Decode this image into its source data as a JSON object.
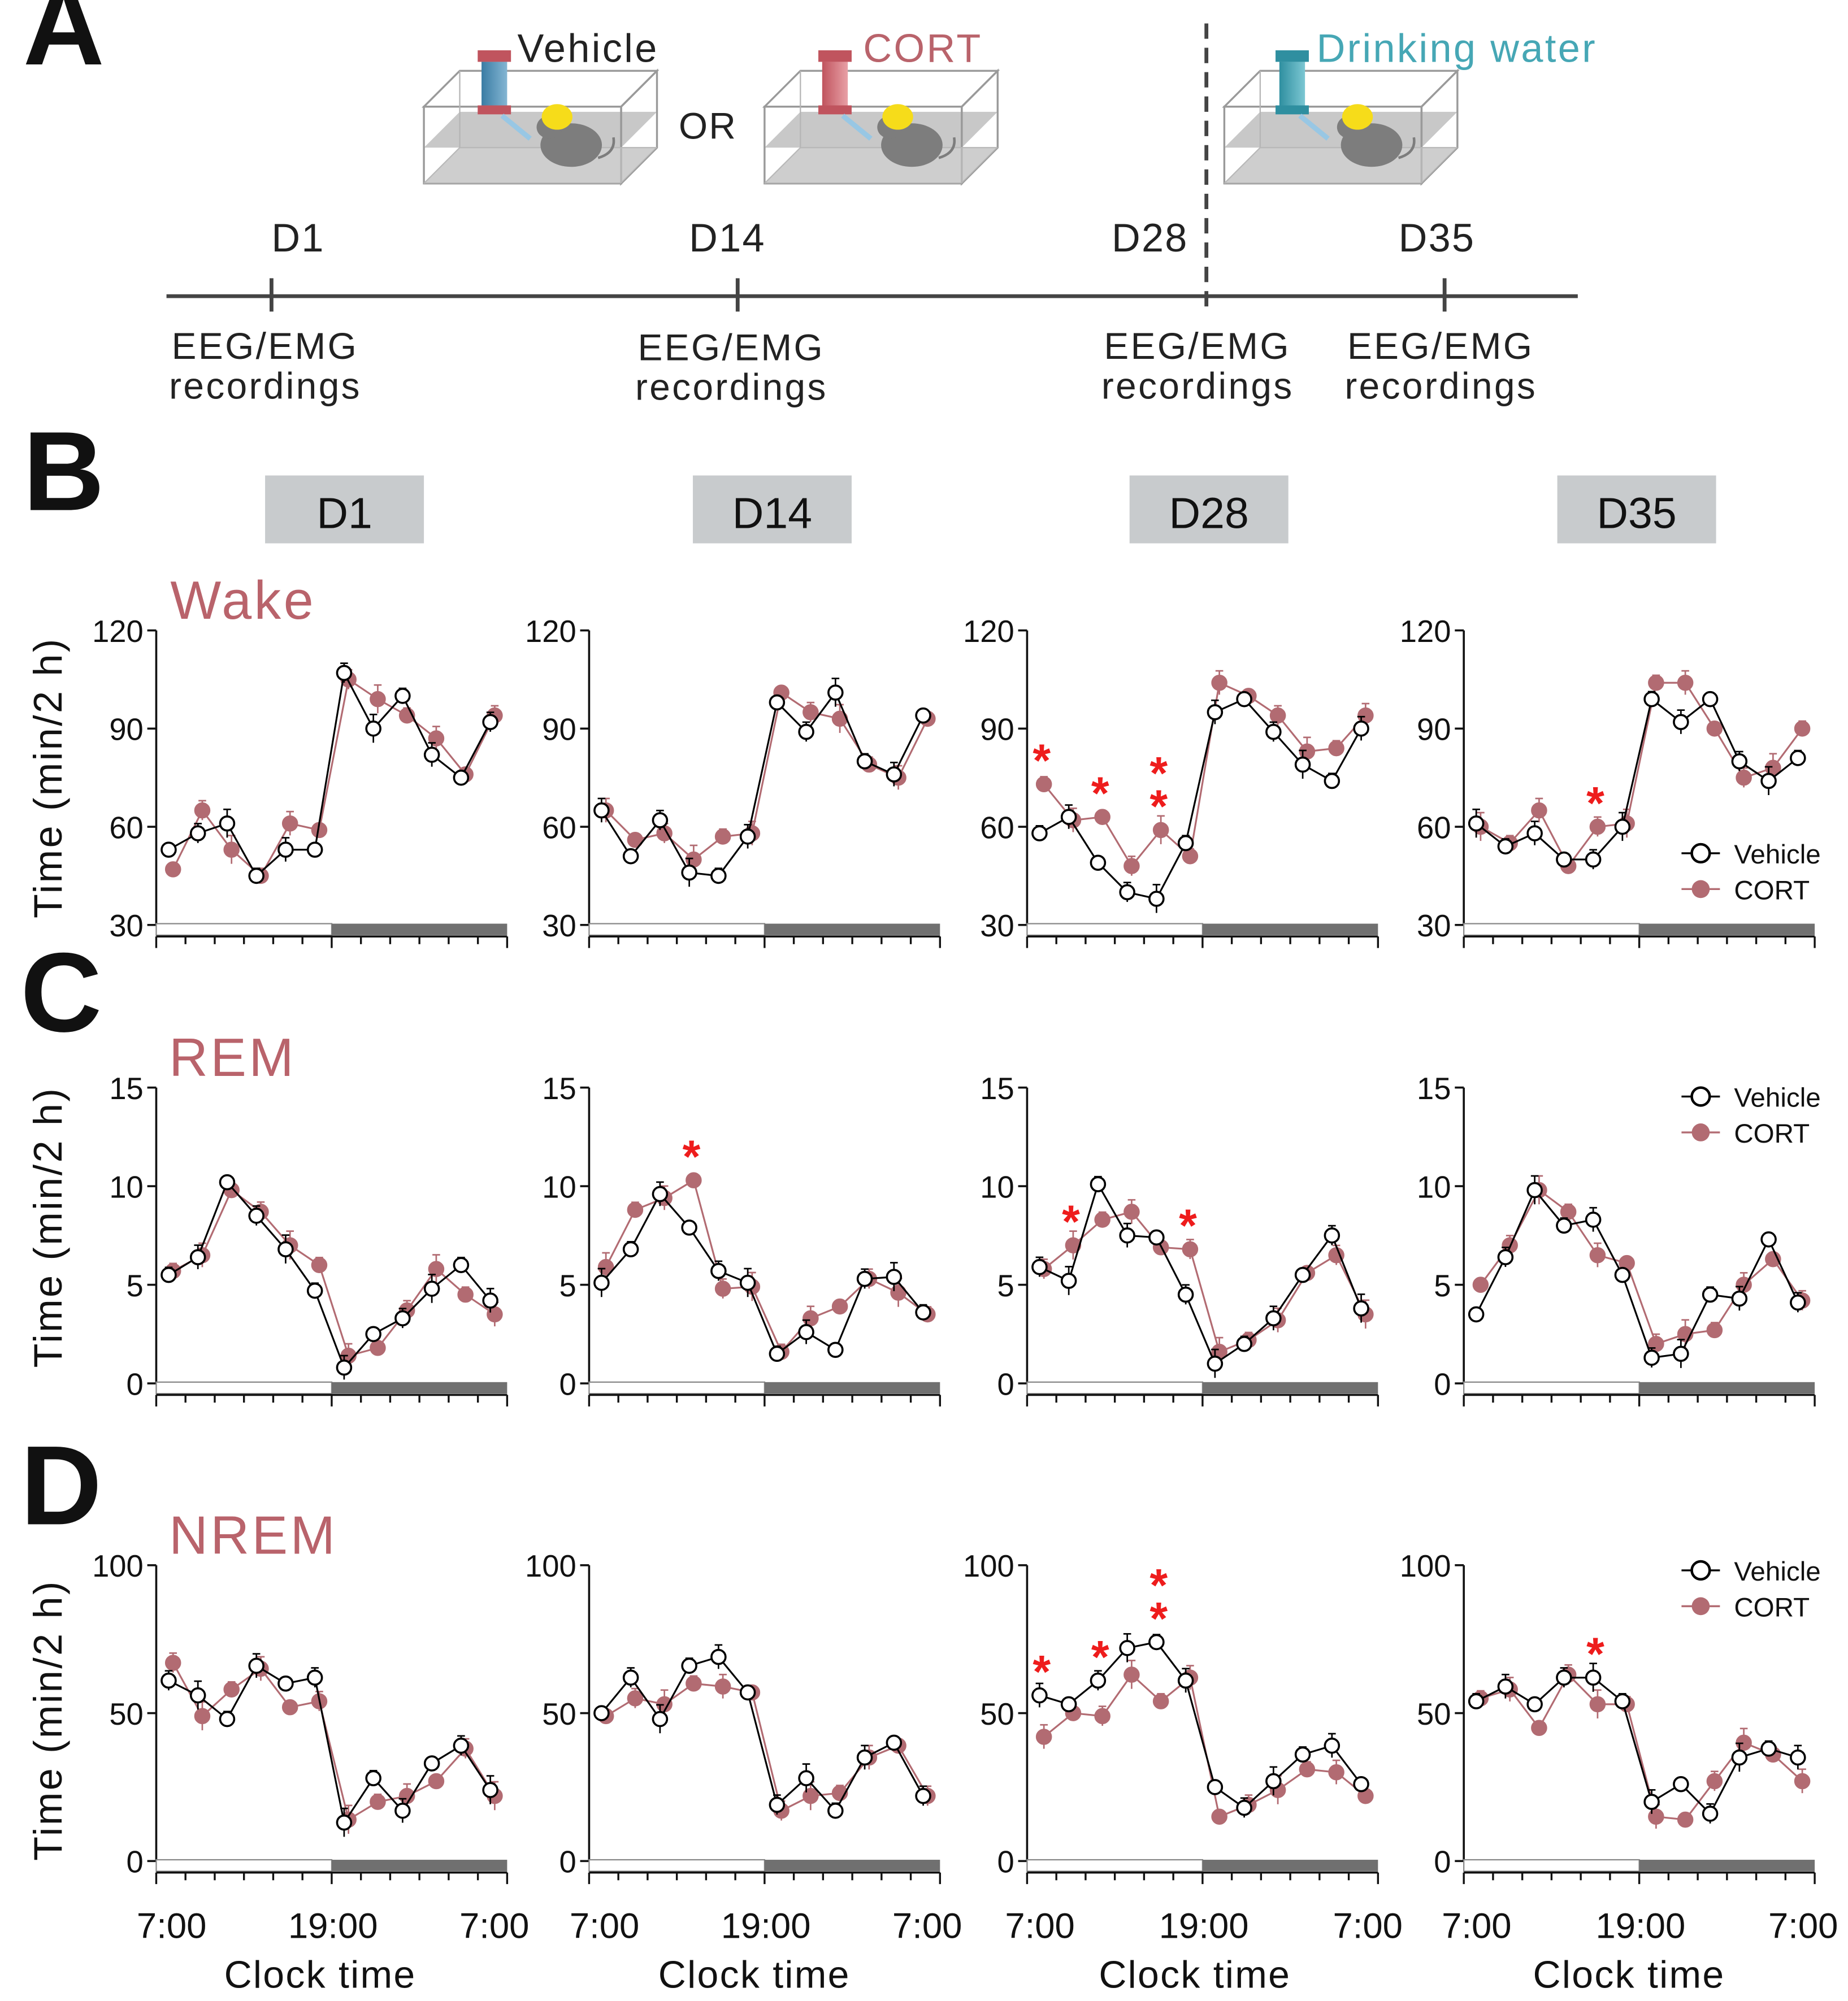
{
  "panel_labels": {
    "a": "A",
    "b": "B",
    "c": "C",
    "d": "D"
  },
  "timeline": {
    "options": [
      "Vehicle",
      "OR",
      "CORT",
      "Drinking water"
    ],
    "days": [
      "D1",
      "D14",
      "D28",
      "D35"
    ],
    "rec_line1": "EEG/EMG",
    "rec_line2": "recordings"
  },
  "colors": {
    "vehicle": "#000000",
    "cort": "#b26b72",
    "state": "#b9636b",
    "water": "#46a7b5",
    "accent": "#ee1c1c",
    "dark_bar": "#707070"
  },
  "icons": [
    "mouse-cage-icon",
    "bottle-icon"
  ],
  "day_headers": [
    "D1",
    "D14",
    "D28",
    "D35"
  ],
  "x_axis_label": "Clock time",
  "y_axis_label": "Time (min/2 h)",
  "x_tick_labels": [
    "7:00",
    "19:00",
    "7:00"
  ],
  "legend": {
    "vehicle": "Vehicle",
    "cort": "CORT"
  },
  "chart_data": [
    {
      "type": "line",
      "title": "Wake",
      "ylabel": "Time (min/2 h)",
      "ylim": [
        30,
        120
      ],
      "yticks": [
        30,
        60,
        90,
        120
      ],
      "x": [
        8,
        10,
        12,
        14,
        16,
        18,
        20,
        22,
        24,
        26,
        28,
        30
      ],
      "panels": [
        {
          "day": "D1",
          "series": [
            {
              "name": "Vehicle",
              "values": [
                53,
                58,
                61,
                45,
                53,
                53,
                107,
                90,
                100,
                82,
                75,
                92
              ]
            },
            {
              "name": "CORT",
              "values": [
                47,
                65,
                53,
                45,
                61,
                59,
                105,
                99,
                94,
                87,
                76,
                94
              ]
            }
          ],
          "stars": []
        },
        {
          "day": "D14",
          "series": [
            {
              "name": "Vehicle",
              "values": [
                65,
                51,
                62,
                46,
                45,
                57,
                98,
                89,
                101,
                80,
                76,
                94
              ]
            },
            {
              "name": "CORT",
              "values": [
                65,
                56,
                58,
                50,
                57,
                58,
                101,
                95,
                93,
                79,
                75,
                93
              ]
            }
          ],
          "stars": []
        },
        {
          "day": "D28",
          "series": [
            {
              "name": "Vehicle",
              "values": [
                58,
                63,
                49,
                40,
                38,
                55,
                95,
                99,
                89,
                79,
                74,
                90
              ]
            },
            {
              "name": "CORT",
              "values": [
                73,
                62,
                63,
                48,
                59,
                51,
                104,
                100,
                94,
                83,
                84,
                94
              ]
            }
          ],
          "stars": [
            {
              "x": 8,
              "text": "*"
            },
            {
              "x": 12,
              "text": "*"
            },
            {
              "x": 16,
              "text": "**"
            }
          ]
        },
        {
          "day": "D35",
          "series": [
            {
              "name": "Vehicle",
              "values": [
                61,
                54,
                58,
                50,
                50,
                60,
                99,
                92,
                99,
                80,
                74,
                81
              ]
            },
            {
              "name": "CORT",
              "values": [
                60,
                55,
                65,
                48,
                60,
                61,
                104,
                104,
                90,
                75,
                78,
                90
              ]
            }
          ],
          "stars": [
            {
              "x": 16,
              "text": "*"
            }
          ]
        }
      ]
    },
    {
      "type": "line",
      "title": "REM",
      "ylabel": "Time (min/2 h)",
      "ylim": [
        0,
        15
      ],
      "yticks": [
        0,
        5,
        10,
        15
      ],
      "x": [
        8,
        10,
        12,
        14,
        16,
        18,
        20,
        22,
        24,
        26,
        28,
        30
      ],
      "panels": [
        {
          "day": "D1",
          "series": [
            {
              "name": "Vehicle",
              "values": [
                5.5,
                6.4,
                10.2,
                8.5,
                6.8,
                4.7,
                0.8,
                2.5,
                3.3,
                4.8,
                6.0,
                4.2
              ]
            },
            {
              "name": "CORT",
              "values": [
                5.7,
                6.5,
                9.8,
                8.7,
                7.0,
                6.0,
                1.4,
                1.8,
                3.7,
                5.8,
                4.5,
                3.5
              ]
            }
          ],
          "stars": []
        },
        {
          "day": "D14",
          "series": [
            {
              "name": "Vehicle",
              "values": [
                5.1,
                6.8,
                9.6,
                7.9,
                5.7,
                5.1,
                1.5,
                2.6,
                1.7,
                5.3,
                5.4,
                3.6
              ]
            },
            {
              "name": "CORT",
              "values": [
                5.9,
                8.8,
                9.4,
                10.3,
                4.8,
                4.9,
                1.6,
                3.3,
                3.9,
                5.3,
                4.6,
                3.5
              ]
            }
          ],
          "stars": [
            {
              "x": 14,
              "text": "*"
            }
          ]
        },
        {
          "day": "D28",
          "series": [
            {
              "name": "Vehicle",
              "values": [
                5.9,
                5.2,
                10.1,
                7.5,
                7.4,
                4.5,
                1.0,
                2.0,
                3.3,
                5.5,
                7.5,
                3.8
              ]
            },
            {
              "name": "CORT",
              "values": [
                5.8,
                7.0,
                8.3,
                8.7,
                6.9,
                6.8,
                1.6,
                2.2,
                3.2,
                5.6,
                6.5,
                3.5
              ]
            }
          ],
          "stars": [
            {
              "x": 10,
              "text": "*"
            },
            {
              "x": 18,
              "text": "*"
            }
          ]
        },
        {
          "day": "D35",
          "series": [
            {
              "name": "Vehicle",
              "values": [
                3.5,
                6.4,
                9.8,
                8.0,
                8.3,
                5.5,
                1.3,
                1.5,
                4.5,
                4.3,
                7.3,
                4.1
              ]
            },
            {
              "name": "CORT",
              "values": [
                5.0,
                7.0,
                9.8,
                8.7,
                6.5,
                6.1,
                2.0,
                2.5,
                2.7,
                5.0,
                6.3,
                4.2
              ]
            }
          ],
          "stars": []
        }
      ]
    },
    {
      "type": "line",
      "title": "NREM",
      "ylabel": "Time (min/2 h)",
      "ylim": [
        0,
        100
      ],
      "yticks": [
        0,
        50,
        100
      ],
      "x": [
        8,
        10,
        12,
        14,
        16,
        18,
        20,
        22,
        24,
        26,
        28,
        30
      ],
      "panels": [
        {
          "day": "D1",
          "series": [
            {
              "name": "Vehicle",
              "values": [
                61,
                56,
                48,
                66,
                60,
                62,
                13,
                28,
                17,
                33,
                39,
                24
              ]
            },
            {
              "name": "CORT",
              "values": [
                67,
                49,
                58,
                65,
                52,
                54,
                14,
                20,
                22,
                27,
                38,
                22
              ]
            }
          ],
          "stars": []
        },
        {
          "day": "D14",
          "series": [
            {
              "name": "Vehicle",
              "values": [
                50,
                62,
                48,
                66,
                69,
                57,
                19,
                28,
                17,
                35,
                40,
                22
              ]
            },
            {
              "name": "CORT",
              "values": [
                49,
                55,
                53,
                60,
                59,
                57,
                17,
                22,
                23,
                35,
                39,
                22
              ]
            }
          ],
          "stars": []
        },
        {
          "day": "D28",
          "series": [
            {
              "name": "Vehicle",
              "values": [
                56,
                53,
                61,
                72,
                74,
                61,
                25,
                18,
                27,
                36,
                39,
                26
              ]
            },
            {
              "name": "CORT",
              "values": [
                42,
                50,
                49,
                63,
                54,
                62,
                15,
                19,
                24,
                31,
                30,
                22
              ]
            }
          ],
          "stars": [
            {
              "x": 8,
              "text": "*"
            },
            {
              "x": 12,
              "text": "*"
            },
            {
              "x": 16,
              "text": "**"
            }
          ]
        },
        {
          "day": "D35",
          "series": [
            {
              "name": "Vehicle",
              "values": [
                54,
                59,
                53,
                62,
                62,
                54,
                20,
                26,
                16,
                35,
                38,
                35
              ]
            },
            {
              "name": "CORT",
              "values": [
                55,
                58,
                45,
                63,
                53,
                53,
                15,
                14,
                27,
                40,
                36,
                27
              ]
            }
          ],
          "stars": [
            {
              "x": 16,
              "text": "*"
            }
          ]
        }
      ]
    }
  ]
}
